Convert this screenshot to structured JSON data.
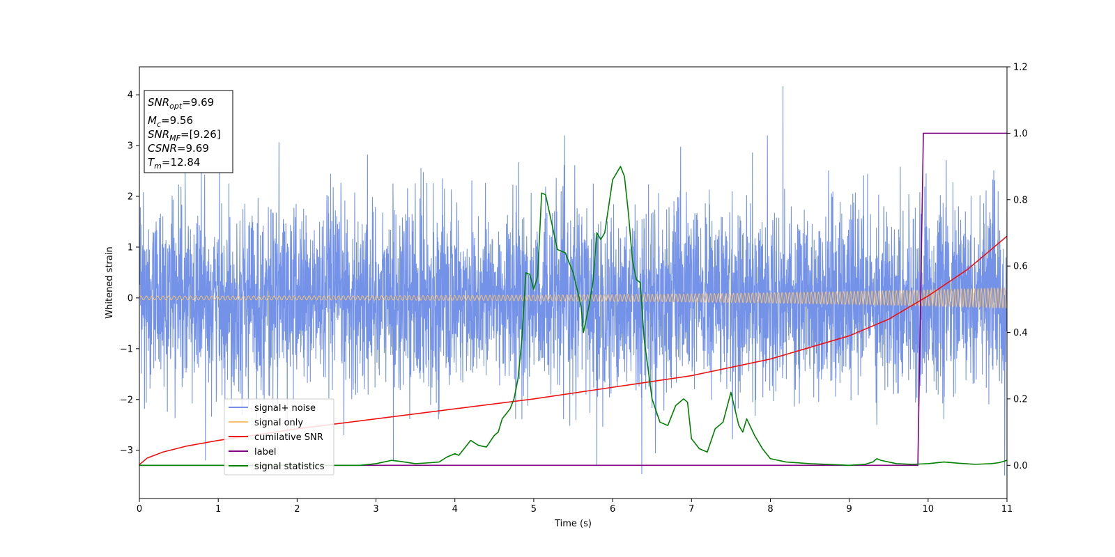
{
  "chart_data": {
    "type": "line",
    "title": "",
    "xlabel": "Time (s)",
    "ylabel": "Whitened strain",
    "xlim": [
      0,
      11
    ],
    "ylim": [
      -3.95,
      4.55
    ],
    "y2lim": [
      -0.1,
      1.2
    ],
    "x_ticks": [
      "0",
      "1",
      "2",
      "3",
      "4",
      "5",
      "6",
      "7",
      "8",
      "9",
      "10",
      "11"
    ],
    "y_ticks": [
      "−3",
      "−2",
      "−1",
      "0",
      "1",
      "2",
      "3",
      "4"
    ],
    "y2_ticks": [
      "0.0",
      "0.2",
      "0.4",
      "0.6",
      "0.8",
      "1.0",
      "1.2"
    ],
    "legend_position": "lower-left",
    "grid": false,
    "textbox": {
      "line1": "SNR",
      "line1_sub": "opt",
      "line1_val": "=9.69",
      "line2": "M",
      "line2_sub": "c",
      "line2_val": "=9.56",
      "line3": "SNR",
      "line3_sub": "MF",
      "line3_val": "=[9.26]",
      "line4": "CSNR",
      "line4_val": "=9.69",
      "line5": "T",
      "line5_sub": "m",
      "line5_val": "=12.84"
    },
    "series": [
      {
        "name": "signal+ noise",
        "axis": "left",
        "color": "#7493e8",
        "noise_std": 0.9,
        "notable_spikes": [
          {
            "x": 8.16,
            "y": 4.17
          },
          {
            "x": 6.37,
            "y": -3.47
          },
          {
            "x": 10.97,
            "y": -3.5
          },
          {
            "x": 5.8,
            "y": -3.3
          },
          {
            "x": 3.22,
            "y": -3.2
          }
        ]
      },
      {
        "name": "signal only",
        "axis": "left",
        "color": "#f5c071",
        "amplitude_start": 0.04,
        "amplitude_end": 0.2
      },
      {
        "name": "cumilative SNR",
        "axis": "right",
        "color": "#ee1111",
        "x": [
          0,
          0.1,
          0.3,
          0.6,
          1,
          2,
          3,
          4,
          5,
          6,
          7,
          8,
          9,
          9.5,
          10,
          10.5,
          11
        ],
        "y": [
          0.002,
          0.022,
          0.04,
          0.058,
          0.075,
          0.11,
          0.14,
          0.17,
          0.2,
          0.235,
          0.27,
          0.32,
          0.39,
          0.44,
          0.51,
          0.59,
          0.69
        ]
      },
      {
        "name": "label",
        "axis": "right",
        "color": "#800080",
        "x": [
          0,
          9.87,
          9.94,
          11
        ],
        "y": [
          0,
          0,
          1,
          1
        ]
      },
      {
        "name": "signal statistics",
        "axis": "right",
        "color": "#008000",
        "x": [
          0,
          0.5,
          1,
          1.5,
          2,
          2.5,
          2.8,
          3.0,
          3.1,
          3.2,
          3.3,
          3.5,
          3.7,
          3.8,
          3.9,
          4.0,
          4.05,
          4.1,
          4.2,
          4.3,
          4.4,
          4.5,
          4.55,
          4.6,
          4.7,
          4.75,
          4.8,
          4.85,
          4.9,
          4.95,
          5.0,
          5.05,
          5.1,
          5.15,
          5.2,
          5.3,
          5.4,
          5.5,
          5.6,
          5.63,
          5.7,
          5.75,
          5.8,
          5.85,
          5.9,
          6.0,
          6.1,
          6.15,
          6.2,
          6.25,
          6.3,
          6.35,
          6.4,
          6.5,
          6.6,
          6.7,
          6.8,
          6.9,
          6.95,
          7.0,
          7.1,
          7.2,
          7.3,
          7.4,
          7.5,
          7.6,
          7.65,
          7.7,
          7.8,
          7.9,
          8.0,
          8.2,
          8.5,
          8.8,
          9.0,
          9.2,
          9.3,
          9.35,
          9.4,
          9.6,
          9.8,
          10.0,
          10.2,
          10.4,
          10.6,
          10.8,
          10.9,
          11.0
        ],
        "y": [
          0,
          0.0,
          0.0,
          0.0,
          0.0,
          0.0,
          0.0,
          0.005,
          0.01,
          0.015,
          0.012,
          0.005,
          0.008,
          0.01,
          0.025,
          0.035,
          0.03,
          0.045,
          0.075,
          0.06,
          0.055,
          0.09,
          0.1,
          0.14,
          0.17,
          0.2,
          0.26,
          0.38,
          0.58,
          0.575,
          0.53,
          0.57,
          0.82,
          0.815,
          0.76,
          0.65,
          0.64,
          0.58,
          0.48,
          0.4,
          0.48,
          0.55,
          0.7,
          0.68,
          0.7,
          0.86,
          0.9,
          0.87,
          0.76,
          0.62,
          0.56,
          0.55,
          0.38,
          0.2,
          0.13,
          0.12,
          0.18,
          0.2,
          0.19,
          0.08,
          0.05,
          0.04,
          0.11,
          0.13,
          0.22,
          0.12,
          0.1,
          0.14,
          0.09,
          0.05,
          0.02,
          0.01,
          0.005,
          0.002,
          0.0,
          0.003,
          0.01,
          0.02,
          0.015,
          0.005,
          0.003,
          0.005,
          0.01,
          0.006,
          0.003,
          0.005,
          0.008,
          0.015
        ]
      }
    ]
  }
}
